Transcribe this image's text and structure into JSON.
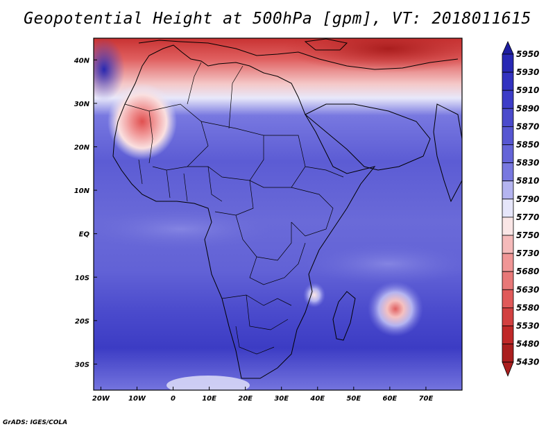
{
  "title": "Geopotential Height at 500hPa [gpm], VT: 2018011615",
  "footer": "GrADS: IGES/COLA",
  "map": {
    "lon_range": [
      -22,
      80
    ],
    "lat_range": [
      -36,
      45
    ],
    "lon_ticks": [
      {
        "value": -20,
        "label": "20W"
      },
      {
        "value": -10,
        "label": "10W"
      },
      {
        "value": 0,
        "label": "0"
      },
      {
        "value": 10,
        "label": "10E"
      },
      {
        "value": 20,
        "label": "20E"
      },
      {
        "value": 30,
        "label": "30E"
      },
      {
        "value": 40,
        "label": "40E"
      },
      {
        "value": 50,
        "label": "50E"
      },
      {
        "value": 60,
        "label": "60E"
      },
      {
        "value": 70,
        "label": "70E"
      }
    ],
    "lat_ticks": [
      {
        "value": 40,
        "label": "40N"
      },
      {
        "value": 30,
        "label": "30N"
      },
      {
        "value": 20,
        "label": "20N"
      },
      {
        "value": 10,
        "label": "10N"
      },
      {
        "value": 0,
        "label": "EQ"
      },
      {
        "value": -10,
        "label": "10S"
      },
      {
        "value": -20,
        "label": "20S"
      },
      {
        "value": -30,
        "label": "30S"
      }
    ]
  },
  "legend": {
    "levels": [
      "5950",
      "5930",
      "5910",
      "5890",
      "5870",
      "5850",
      "5830",
      "5810",
      "5790",
      "5770",
      "5750",
      "5730",
      "5680",
      "5630",
      "5580",
      "5530",
      "5480",
      "5430"
    ],
    "colors": [
      "#1e1ea0",
      "#2828b4",
      "#3232c0",
      "#3c3cc8",
      "#4a4acc",
      "#5656d2",
      "#6464d8",
      "#7878e0",
      "#b4b4f0",
      "#e6e6fa",
      "#fae6e6",
      "#f5baba",
      "#f09696",
      "#e87878",
      "#e05a5a",
      "#d24040",
      "#c02828",
      "#aa1e1e"
    ]
  }
}
